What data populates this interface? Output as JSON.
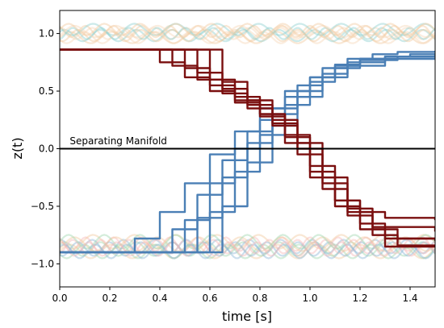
{
  "chart_data": {
    "type": "line",
    "xlabel": "time [s]",
    "ylabel": "z(t)",
    "xlim": [
      0.0,
      1.5
    ],
    "ylim": [
      -1.2,
      1.2
    ],
    "xticks": [
      "0.0",
      "0.2",
      "0.4",
      "0.6",
      "0.8",
      "1.0",
      "1.2",
      "1.4"
    ],
    "yticks": [
      "−1.0",
      "−0.5",
      "0.0",
      "0.5",
      "1.0"
    ],
    "grid": false,
    "annotations": [
      {
        "text": "Separating Manifold",
        "x": 0.04,
        "y": 0.04
      }
    ],
    "reference_line": {
      "y": 0.0,
      "color": "#000000"
    },
    "colors": {
      "rising": "#4a7fb5",
      "falling": "#7a0f0f",
      "upper_band": [
        "#f2c9a0",
        "#8fd0d0",
        "#f6d8b8"
      ],
      "lower_band": [
        "#f2c9a0",
        "#9fd6b0",
        "#8fb8d8",
        "#f6b8b8"
      ]
    },
    "series": [
      {
        "group": "rising",
        "x": [
          0.0,
          0.2,
          0.3,
          0.4,
          0.5,
          0.6,
          0.7,
          0.8,
          0.9,
          1.0,
          1.1,
          1.2,
          1.3,
          1.4,
          1.5
        ],
        "y": [
          -0.9,
          -0.9,
          -0.78,
          -0.55,
          -0.3,
          -0.05,
          0.15,
          0.35,
          0.5,
          0.62,
          0.72,
          0.78,
          0.8,
          0.82,
          0.83
        ]
      },
      {
        "group": "rising",
        "x": [
          0.0,
          0.35,
          0.45,
          0.55,
          0.65,
          0.75,
          0.85,
          0.95,
          1.05,
          1.15,
          1.25,
          1.35,
          1.5
        ],
        "y": [
          -0.9,
          -0.9,
          -0.7,
          -0.4,
          -0.1,
          0.15,
          0.35,
          0.55,
          0.7,
          0.78,
          0.82,
          0.84,
          0.85
        ]
      },
      {
        "group": "rising",
        "x": [
          0.0,
          0.4,
          0.5,
          0.6,
          0.7,
          0.8,
          0.9,
          1.0,
          1.1,
          1.2,
          1.3,
          1.5
        ],
        "y": [
          -0.9,
          -0.9,
          -0.62,
          -0.3,
          0.0,
          0.25,
          0.45,
          0.62,
          0.73,
          0.78,
          0.8,
          0.81
        ]
      },
      {
        "group": "rising",
        "x": [
          0.0,
          0.45,
          0.55,
          0.65,
          0.75,
          0.85,
          0.95,
          1.05,
          1.15,
          1.3,
          1.5
        ],
        "y": [
          -0.9,
          -0.9,
          -0.6,
          -0.25,
          0.05,
          0.3,
          0.5,
          0.65,
          0.75,
          0.8,
          0.82
        ]
      },
      {
        "group": "rising",
        "x": [
          0.0,
          0.5,
          0.6,
          0.7,
          0.8,
          0.9,
          1.0,
          1.1,
          1.2,
          1.35,
          1.5
        ],
        "y": [
          -0.9,
          -0.9,
          -0.55,
          -0.2,
          0.12,
          0.38,
          0.58,
          0.7,
          0.77,
          0.8,
          0.8
        ]
      },
      {
        "group": "rising",
        "x": [
          0.0,
          0.55,
          0.65,
          0.75,
          0.85,
          0.95,
          1.05,
          1.15,
          1.3,
          1.5
        ],
        "y": [
          -0.9,
          -0.9,
          -0.5,
          -0.12,
          0.2,
          0.45,
          0.62,
          0.72,
          0.78,
          0.79
        ]
      },
      {
        "group": "falling",
        "x": [
          0.0,
          0.3,
          0.4,
          0.5,
          0.6,
          0.7,
          0.8,
          0.9,
          1.0,
          1.1,
          1.2,
          1.3,
          1.5
        ],
        "y": [
          0.86,
          0.86,
          0.75,
          0.62,
          0.5,
          0.4,
          0.28,
          0.05,
          -0.25,
          -0.45,
          -0.55,
          -0.6,
          -0.62
        ]
      },
      {
        "group": "falling",
        "x": [
          0.0,
          0.35,
          0.45,
          0.55,
          0.65,
          0.75,
          0.85,
          0.95,
          1.05,
          1.15,
          1.25,
          1.5
        ],
        "y": [
          0.86,
          0.86,
          0.72,
          0.6,
          0.48,
          0.35,
          0.2,
          -0.05,
          -0.35,
          -0.55,
          -0.68,
          -0.72
        ]
      },
      {
        "group": "falling",
        "x": [
          0.0,
          0.4,
          0.5,
          0.6,
          0.7,
          0.8,
          0.9,
          1.0,
          1.1,
          1.2,
          1.3,
          1.5
        ],
        "y": [
          0.86,
          0.86,
          0.7,
          0.55,
          0.42,
          0.3,
          0.12,
          -0.15,
          -0.45,
          -0.65,
          -0.78,
          -0.8
        ]
      },
      {
        "group": "falling",
        "x": [
          0.0,
          0.45,
          0.55,
          0.65,
          0.75,
          0.85,
          0.95,
          1.05,
          1.15,
          1.25,
          1.35,
          1.5
        ],
        "y": [
          0.86,
          0.86,
          0.66,
          0.52,
          0.38,
          0.22,
          0.0,
          -0.3,
          -0.58,
          -0.75,
          -0.84,
          -0.85
        ]
      },
      {
        "group": "falling",
        "x": [
          0.0,
          0.5,
          0.6,
          0.7,
          0.8,
          0.9,
          1.0,
          1.1,
          1.2,
          1.3,
          1.5
        ],
        "y": [
          0.86,
          0.86,
          0.6,
          0.45,
          0.3,
          0.1,
          -0.2,
          -0.5,
          -0.7,
          -0.85,
          -0.85
        ]
      },
      {
        "group": "falling",
        "x": [
          0.0,
          0.55,
          0.65,
          0.75,
          0.85,
          0.95,
          1.05,
          1.15,
          1.25,
          1.35,
          1.5
        ],
        "y": [
          0.86,
          0.86,
          0.58,
          0.42,
          0.25,
          0.05,
          -0.25,
          -0.52,
          -0.7,
          -0.78,
          -0.78
        ]
      }
    ]
  }
}
